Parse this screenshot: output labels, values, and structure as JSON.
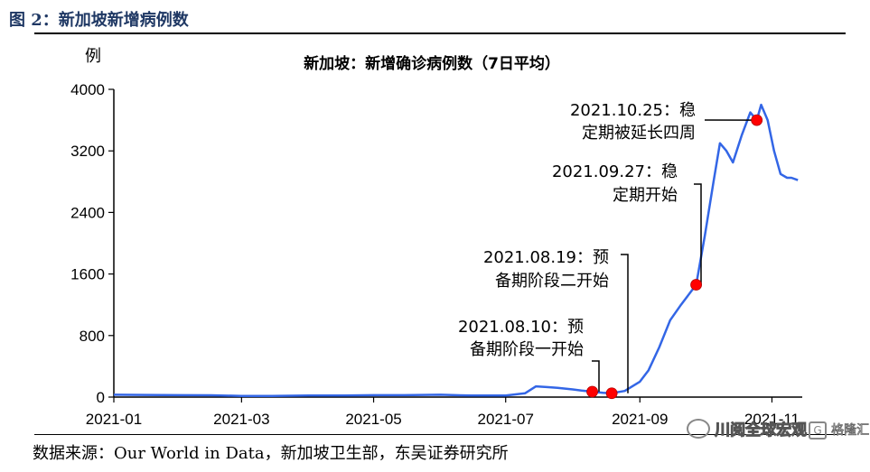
{
  "figure_title": "图 2：新加坡新增病例数",
  "source_text": "数据来源：Our World in Data，新加坡卫生部，东吴证券研究所",
  "watermark": {
    "wechat": "川阅全球宏观",
    "brand": "格隆汇",
    "brand_icon": "G"
  },
  "chart_data": {
    "type": "line",
    "title": "新加坡：新增确诊病例数（7日平均）",
    "ylabel": "例",
    "xlabel": "",
    "ylim": [
      0,
      4000
    ],
    "yticks": [
      0,
      800,
      1600,
      2400,
      3200,
      4000
    ],
    "xlim": [
      "2021-01-01",
      "2021-11-15"
    ],
    "xticks": [
      "2021-01",
      "2021-03",
      "2021-05",
      "2021-07",
      "2021-09",
      "2021-11"
    ],
    "grid": false,
    "line_color": "#3366e6",
    "marker_color": "#ff0000",
    "series": [
      {
        "x": [
          "2021-01-01",
          "2021-01-15",
          "2021-02-01",
          "2021-02-15",
          "2021-03-01",
          "2021-03-15",
          "2021-04-01",
          "2021-04-15",
          "2021-05-01",
          "2021-05-15",
          "2021-06-01",
          "2021-06-15",
          "2021-07-01",
          "2021-07-10",
          "2021-07-15",
          "2021-07-20",
          "2021-07-25",
          "2021-08-01",
          "2021-08-05",
          "2021-08-10",
          "2021-08-15",
          "2021-08-19",
          "2021-08-25",
          "2021-09-01",
          "2021-09-05",
          "2021-09-10",
          "2021-09-15",
          "2021-09-20",
          "2021-09-27",
          "2021-10-01",
          "2021-10-05",
          "2021-10-08",
          "2021-10-11",
          "2021-10-14",
          "2021-10-18",
          "2021-10-22",
          "2021-10-25",
          "2021-10-27",
          "2021-10-30",
          "2021-11-02",
          "2021-11-05",
          "2021-11-08",
          "2021-11-10",
          "2021-11-13"
        ],
        "values": [
          30,
          28,
          25,
          24,
          15,
          15,
          20,
          20,
          25,
          25,
          30,
          20,
          20,
          50,
          140,
          130,
          120,
          100,
          85,
          70,
          55,
          50,
          80,
          200,
          350,
          650,
          1000,
          1200,
          1460,
          2100,
          2800,
          3300,
          3200,
          3050,
          3400,
          3700,
          3600,
          3800,
          3600,
          3200,
          2900,
          2850,
          2850,
          2820
        ]
      }
    ],
    "annotations": [
      {
        "date": "2021-08-10",
        "value": 70,
        "lines": [
          "2021.08.10：预",
          "备期阶段一开始"
        ]
      },
      {
        "date": "2021-08-19",
        "value": 50,
        "lines": [
          "2021.08.19：预",
          "备期阶段二开始"
        ]
      },
      {
        "date": "2021-09-27",
        "value": 1460,
        "lines": [
          "2021.09.27：稳",
          "定期开始"
        ]
      },
      {
        "date": "2021-10-25",
        "value": 3600,
        "lines": [
          "2021.10.25：稳",
          "定期被延长四周"
        ]
      }
    ]
  }
}
